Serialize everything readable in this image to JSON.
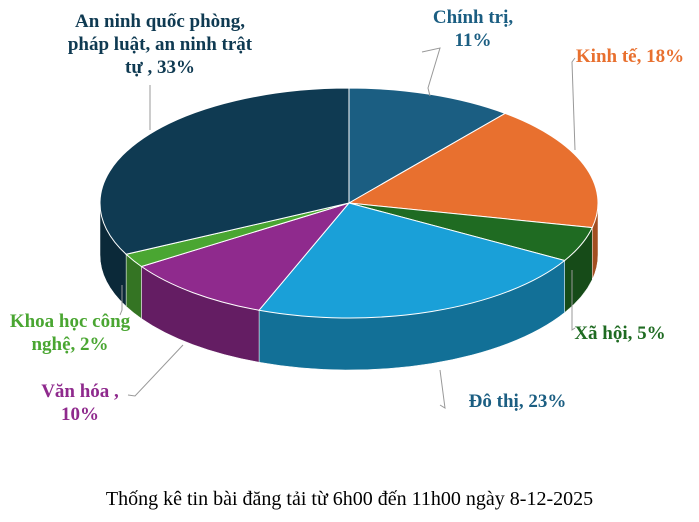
{
  "chart_data": {
    "type": "pie",
    "style": "3d",
    "title": "Thống kê tin bài đăng tải từ 6h00 đến 11h00 ngày 8-12-2025",
    "slices": [
      {
        "label": "Chính trị, 11%",
        "name": "Chính trị",
        "value": 11,
        "color": "#1b5e82"
      },
      {
        "label": "Kinh tế, 18%",
        "name": "Kinh tế",
        "value": 18,
        "color": "#e8702f"
      },
      {
        "label": "Xã hội, 5%",
        "name": "Xã hội",
        "value": 5,
        "color": "#1f6b22"
      },
      {
        "label": "Đô thị, 23%",
        "name": "Đô thị",
        "value": 23,
        "color": "#1aa0d8"
      },
      {
        "label": "Văn hóa , 10%",
        "name": "Văn hóa",
        "value": 10,
        "color": "#8f2a8d"
      },
      {
        "label": "Khoa học công nghệ, 2%",
        "name": "Khoa học công nghệ",
        "value": 2,
        "color": "#4aa632"
      },
      {
        "label": "An ninh quốc phòng, pháp luật, an ninh trật tự , 33%",
        "name": "An ninh quốc phòng, pháp luật, an ninh trật tự",
        "value": 33,
        "color": "#0f3a52"
      }
    ]
  }
}
